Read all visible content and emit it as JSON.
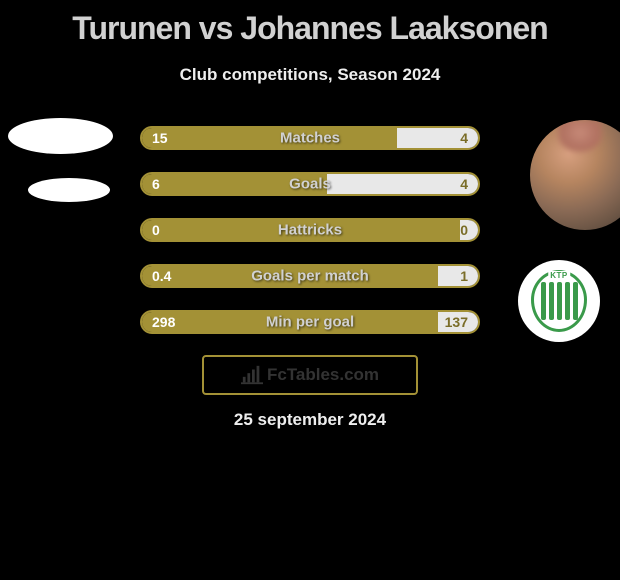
{
  "title": "Turunen vs Johannes Laaksonen",
  "subtitle": "Club competitions, Season 2024",
  "date": "25 september 2024",
  "source": "FcTables.com",
  "colors": {
    "bar_primary": "#a39136",
    "bar_secondary": "#e8e8e8",
    "bar_border": "#a39136",
    "left_value_text": "#ffffff",
    "right_value_text": "#7a6d28",
    "label_text": "#d1d1d1",
    "background": "#000000",
    "title_text": "#d1d1d1",
    "badge_green": "#3a9a4a",
    "badge_bg": "#ffffff"
  },
  "typography": {
    "title_fontsize": 32,
    "subtitle_fontsize": 17,
    "bar_label_fontsize": 15,
    "bar_value_fontsize": 14,
    "date_fontsize": 17
  },
  "bars": [
    {
      "label": "Matches",
      "left_val": "15",
      "right_val": "4",
      "left_pct": 76
    },
    {
      "label": "Goals",
      "left_val": "6",
      "right_val": "4",
      "left_pct": 55
    },
    {
      "label": "Hattricks",
      "left_val": "0",
      "right_val": "0",
      "left_pct": 96
    },
    {
      "label": "Goals per match",
      "left_val": "0.4",
      "right_val": "1",
      "left_pct": 88
    },
    {
      "label": "Min per goal",
      "left_val": "298",
      "right_val": "137",
      "left_pct": 88
    }
  ],
  "avatars": {
    "left_team_1": {
      "shape": "ellipse",
      "bg": "#ffffff"
    },
    "left_team_2": {
      "shape": "ellipse",
      "bg": "#ffffff"
    },
    "right_player": {
      "shape": "circle",
      "desc": "blurred-face-photo"
    },
    "right_badge": {
      "text": "KTP",
      "stripes": 5,
      "color": "#3a9a4a"
    }
  }
}
